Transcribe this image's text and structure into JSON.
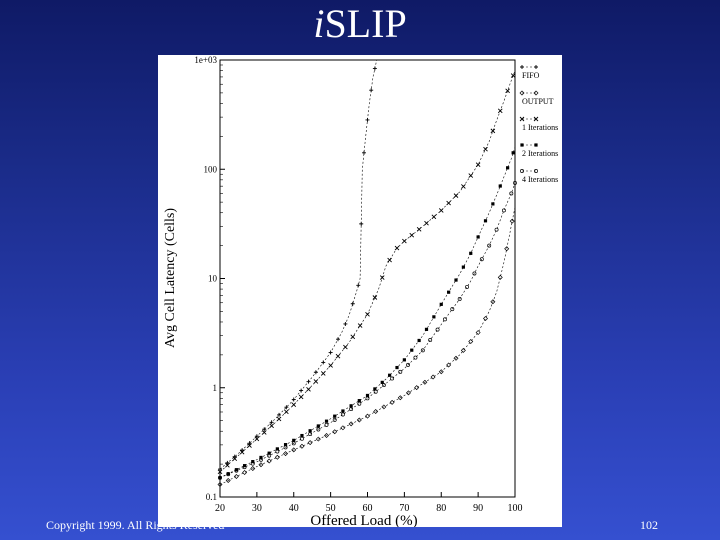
{
  "slide": {
    "title_italic": "i",
    "title_rest": "SLIP",
    "footer_copyright": "Copyright 1999. All Rights Reserved",
    "page_number": "102"
  },
  "chart_data": {
    "type": "line",
    "title": "",
    "xlabel": "Offered Load (%)",
    "ylabel": "Avg Cell Latency (Cells)",
    "xlim": [
      20,
      100
    ],
    "ylim": [
      0.1,
      1000
    ],
    "y_scale": "log",
    "x_ticks": [
      20,
      30,
      40,
      50,
      60,
      70,
      80,
      90,
      100
    ],
    "y_ticks": [
      0.1,
      1,
      10,
      100,
      1000
    ],
    "y_tick_labels": [
      "0.1",
      "1",
      "10",
      "100",
      "1e+03"
    ],
    "grid": false,
    "legend_position": "right-outside",
    "series": [
      {
        "name": "FIFO",
        "marker": "plus",
        "x": [
          20,
          25,
          30,
          35,
          40,
          45,
          50,
          53,
          55,
          57,
          58,
          58.6,
          59.5,
          60.5,
          61.5,
          62.5
        ],
        "y": [
          0.18,
          0.25,
          0.36,
          0.52,
          0.78,
          1.25,
          2.1,
          3.2,
          4.6,
          7.5,
          10,
          100,
          200,
          400,
          700,
          1000
        ]
      },
      {
        "name": "OUTPUT",
        "marker": "diamond",
        "x": [
          20,
          30,
          40,
          50,
          60,
          70,
          80,
          85,
          90,
          93,
          95,
          97,
          98.5,
          100
        ],
        "y": [
          0.13,
          0.19,
          0.27,
          0.38,
          0.55,
          0.85,
          1.4,
          2.0,
          3.2,
          5.0,
          7.5,
          14,
          25,
          45
        ]
      },
      {
        "name": "1 Iterations",
        "marker": "cross",
        "x": [
          20,
          25,
          30,
          35,
          40,
          45,
          50,
          55,
          60,
          63,
          65,
          68,
          70,
          75,
          80,
          85,
          90,
          93,
          95,
          97,
          99,
          100
        ],
        "y": [
          0.17,
          0.24,
          0.34,
          0.48,
          0.7,
          1.05,
          1.6,
          2.6,
          4.7,
          8,
          13,
          19,
          22,
          30,
          42,
          62,
          110,
          180,
          280,
          420,
          650,
          800
        ]
      },
      {
        "name": "2 Iterations",
        "marker": "square",
        "x": [
          20,
          30,
          40,
          50,
          60,
          65,
          70,
          75,
          80,
          85,
          88,
          90,
          93,
          95,
          97,
          99,
          100
        ],
        "y": [
          0.15,
          0.22,
          0.33,
          0.52,
          0.85,
          1.2,
          1.8,
          3.0,
          5.8,
          11,
          17,
          24,
          40,
          58,
          85,
          125,
          160
        ]
      },
      {
        "name": "4 Iterations",
        "marker": "circle",
        "x": [
          20,
          30,
          40,
          50,
          60,
          70,
          75,
          80,
          85,
          88,
          90,
          93,
          95,
          97,
          99,
          100
        ],
        "y": [
          0.15,
          0.21,
          0.31,
          0.48,
          0.8,
          1.5,
          2.2,
          3.8,
          6.5,
          9.5,
          13,
          20,
          28,
          42,
          60,
          75
        ]
      }
    ]
  }
}
